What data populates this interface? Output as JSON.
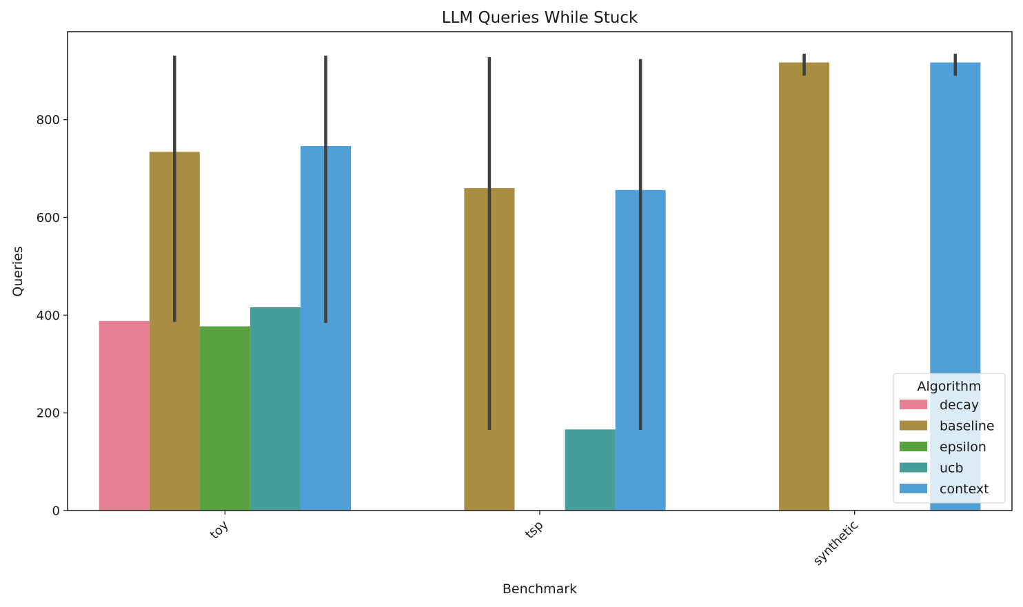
{
  "chart_data": {
    "type": "bar",
    "title": "LLM Queries While Stuck",
    "xlabel": "Benchmark",
    "ylabel": "Queries",
    "categories": [
      "toy",
      "tsp",
      "synthetic"
    ],
    "ylim": [
      0,
      980
    ],
    "yticks": [
      0,
      200,
      400,
      600,
      800
    ],
    "grid": false,
    "legend": {
      "title": "Algorithm",
      "position": "lower-right"
    },
    "series": [
      {
        "name": "decay",
        "color": "#e68193",
        "values": [
          388,
          null,
          null
        ],
        "err_low": [
          null,
          null,
          null
        ],
        "err_high": [
          null,
          null,
          null
        ]
      },
      {
        "name": "baseline",
        "color": "#a98d40",
        "values": [
          734,
          660,
          917
        ],
        "err_low": [
          386,
          165,
          890
        ],
        "err_high": [
          931,
          928,
          935
        ]
      },
      {
        "name": "epsilon",
        "color": "#58a33f",
        "values": [
          377,
          null,
          null
        ],
        "err_low": [
          null,
          null,
          null
        ],
        "err_high": [
          null,
          null,
          null
        ]
      },
      {
        "name": "ucb",
        "color": "#469e98",
        "values": [
          416,
          166,
          null
        ],
        "err_low": [
          null,
          null,
          null
        ],
        "err_high": [
          null,
          null,
          null
        ]
      },
      {
        "name": "context",
        "color": "#509fd7",
        "values": [
          746,
          656,
          917
        ],
        "err_low": [
          384,
          165,
          890
        ],
        "err_high": [
          931,
          924,
          935
        ]
      }
    ]
  }
}
